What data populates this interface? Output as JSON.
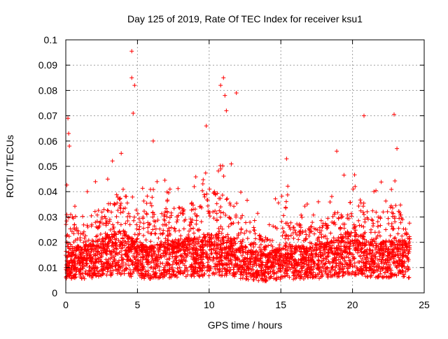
{
  "chart_data": {
    "type": "scatter",
    "title": "Day 125 of 2019, Rate Of TEC Index for receiver ksu1",
    "xlabel": "GPS time / hours",
    "ylabel": "ROTI / TECUs",
    "xlim": [
      0,
      25
    ],
    "ylim": [
      0,
      0.1
    ],
    "x_ticks": [
      "0",
      "5",
      "10",
      "15",
      "20",
      "25"
    ],
    "y_ticks": [
      "0",
      "0.01",
      "0.02",
      "0.03",
      "0.04",
      "0.05",
      "0.06",
      "0.07",
      "0.08",
      "0.09",
      "0.1"
    ],
    "grid": true,
    "marker": "+",
    "color": "#ff0000",
    "x_data_range": [
      0,
      24
    ],
    "notable_points": [
      {
        "x": 4.6,
        "y": 0.0955
      },
      {
        "x": 4.6,
        "y": 0.085
      },
      {
        "x": 4.8,
        "y": 0.082
      },
      {
        "x": 4.7,
        "y": 0.071
      },
      {
        "x": 10.8,
        "y": 0.082
      },
      {
        "x": 11.0,
        "y": 0.085
      },
      {
        "x": 11.1,
        "y": 0.078
      },
      {
        "x": 11.9,
        "y": 0.079
      },
      {
        "x": 11.2,
        "y": 0.072
      },
      {
        "x": 9.8,
        "y": 0.066
      },
      {
        "x": 22.9,
        "y": 0.0705
      },
      {
        "x": 20.8,
        "y": 0.07
      },
      {
        "x": 0.15,
        "y": 0.069
      },
      {
        "x": 0.2,
        "y": 0.063
      },
      {
        "x": 0.25,
        "y": 0.058
      },
      {
        "x": 18.9,
        "y": 0.056
      },
      {
        "x": 23.1,
        "y": 0.057
      },
      {
        "x": 15.4,
        "y": 0.053
      },
      {
        "x": 6.1,
        "y": 0.06
      }
    ],
    "activity_profile": [
      {
        "hour": 0,
        "base": 0.012,
        "peak": 0.05
      },
      {
        "hour": 1,
        "base": 0.012,
        "peak": 0.035
      },
      {
        "hour": 2,
        "base": 0.013,
        "peak": 0.045
      },
      {
        "hour": 3,
        "base": 0.015,
        "peak": 0.05
      },
      {
        "hour": 4,
        "base": 0.016,
        "peak": 0.06
      },
      {
        "hour": 5,
        "base": 0.013,
        "peak": 0.045
      },
      {
        "hour": 6,
        "base": 0.012,
        "peak": 0.045
      },
      {
        "hour": 7,
        "base": 0.013,
        "peak": 0.045
      },
      {
        "hour": 8,
        "base": 0.014,
        "peak": 0.05
      },
      {
        "hour": 9,
        "base": 0.014,
        "peak": 0.05
      },
      {
        "hour": 10,
        "base": 0.015,
        "peak": 0.06
      },
      {
        "hour": 11,
        "base": 0.015,
        "peak": 0.055
      },
      {
        "hour": 12,
        "base": 0.013,
        "peak": 0.05
      },
      {
        "hour": 13,
        "base": 0.011,
        "peak": 0.035
      },
      {
        "hour": 14,
        "base": 0.01,
        "peak": 0.03
      },
      {
        "hour": 15,
        "base": 0.012,
        "peak": 0.045
      },
      {
        "hour": 16,
        "base": 0.012,
        "peak": 0.04
      },
      {
        "hour": 17,
        "base": 0.012,
        "peak": 0.035
      },
      {
        "hour": 18,
        "base": 0.013,
        "peak": 0.04
      },
      {
        "hour": 19,
        "base": 0.014,
        "peak": 0.045
      },
      {
        "hour": 20,
        "base": 0.016,
        "peak": 0.05
      },
      {
        "hour": 21,
        "base": 0.014,
        "peak": 0.045
      },
      {
        "hour": 22,
        "base": 0.013,
        "peak": 0.045
      },
      {
        "hour": 23,
        "base": 0.014,
        "peak": 0.05
      },
      {
        "hour": 24,
        "base": 0.013,
        "peak": 0.03
      }
    ]
  }
}
